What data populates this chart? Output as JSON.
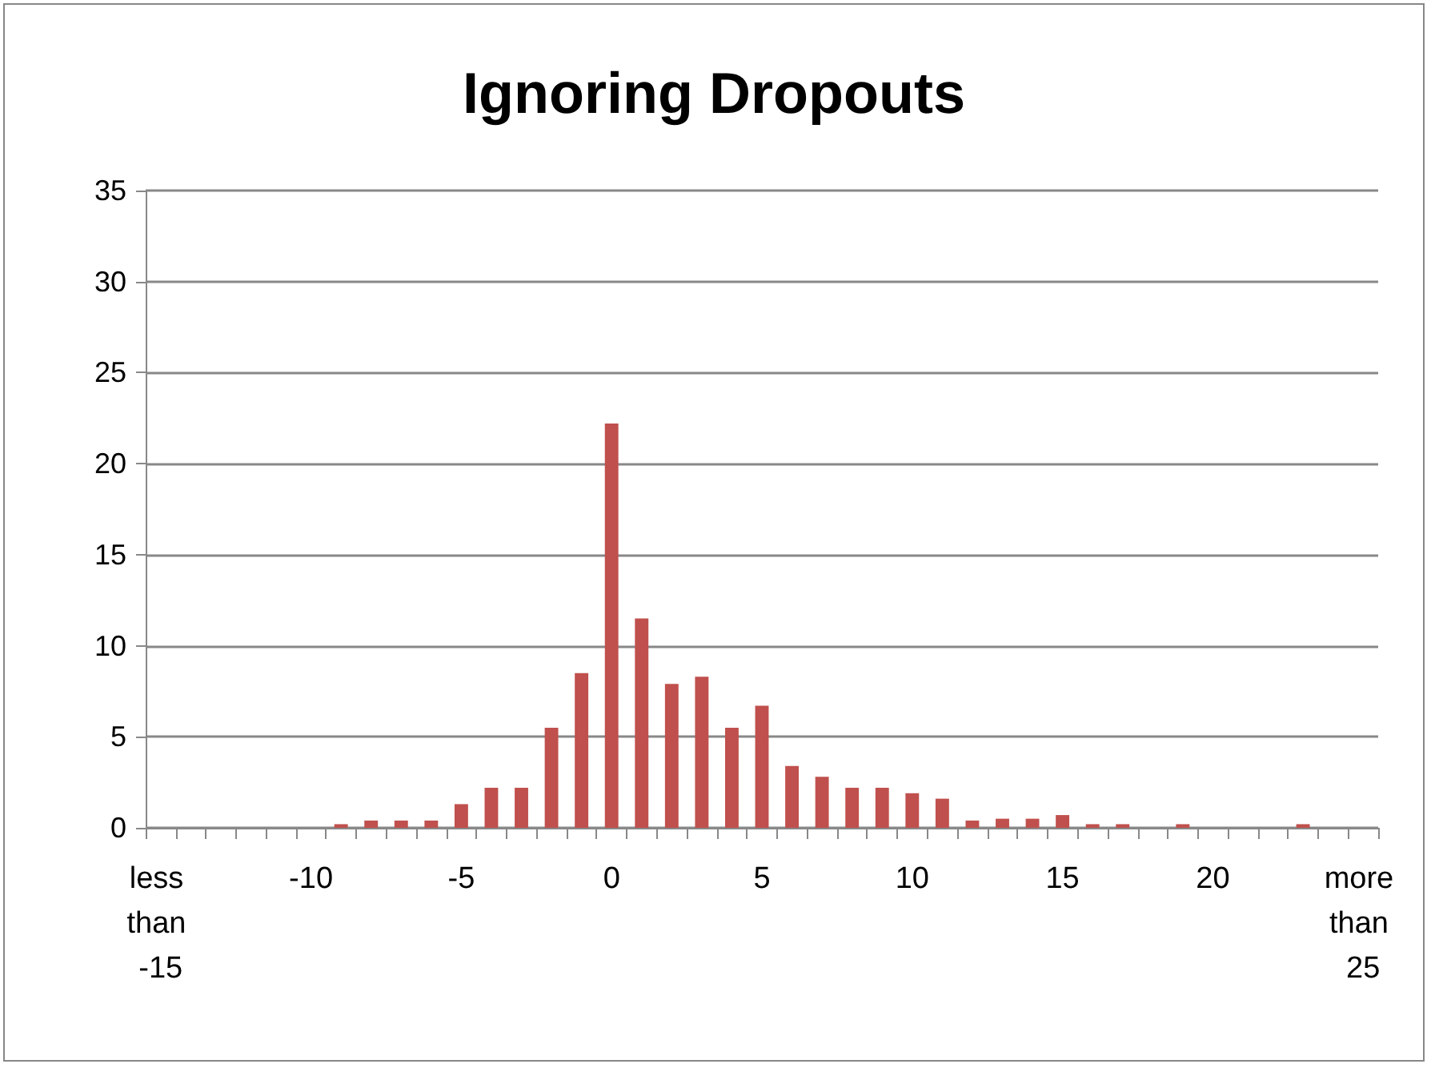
{
  "chart_data": {
    "type": "bar",
    "title": "Ignoring Dropouts",
    "categories": [
      "less than -15",
      null,
      null,
      null,
      null,
      "-10",
      null,
      null,
      null,
      null,
      "-5",
      null,
      null,
      null,
      null,
      "0",
      null,
      null,
      null,
      null,
      "5",
      null,
      null,
      null,
      null,
      "10",
      null,
      null,
      null,
      null,
      "15",
      null,
      null,
      null,
      null,
      "20",
      null,
      null,
      null,
      null,
      "more than 25"
    ],
    "values": [
      0,
      0,
      0,
      0,
      0,
      0,
      0.2,
      0.4,
      0.4,
      0.4,
      1.3,
      2.2,
      2.2,
      5.5,
      8.5,
      22.2,
      11.5,
      7.9,
      8.3,
      5.5,
      6.7,
      3.4,
      2.8,
      2.2,
      2.2,
      1.9,
      1.6,
      0.4,
      0.5,
      0.5,
      0.7,
      0.2,
      0.2,
      0,
      0.2,
      0,
      0,
      0,
      0.2,
      0,
      0
    ],
    "color": "#c0504d",
    "ylim": [
      0,
      35
    ],
    "yticks": [
      0,
      5,
      10,
      15,
      20,
      25,
      30,
      35
    ],
    "grid": "y"
  }
}
